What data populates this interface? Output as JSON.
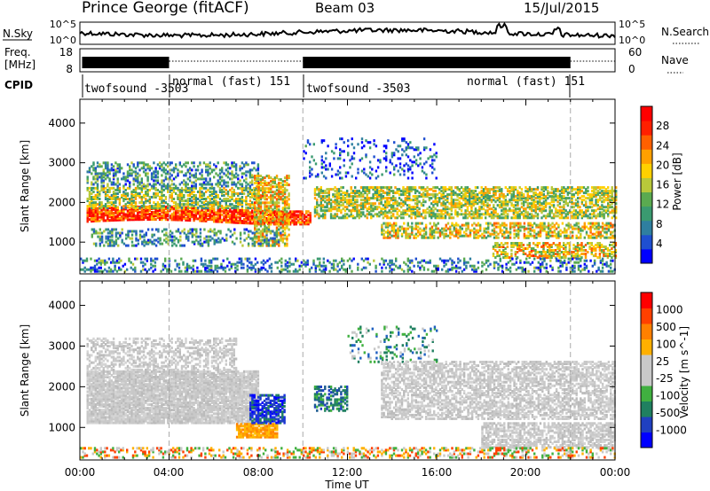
{
  "header": {
    "station": "Prince George (fitACF)",
    "beam": "Beam 03",
    "date": "15/Jul/2015"
  },
  "noise_panel": {
    "left_label": "N.Sky",
    "left_ticks": [
      "10^5",
      "10^0"
    ],
    "right_label": "N.Search",
    "right_ticks": [
      "10^5",
      "10^0"
    ]
  },
  "freq_panel": {
    "left_label_line1": "Freq.",
    "left_label_line2": "[MHz]",
    "left_ticks": [
      "18",
      "8"
    ],
    "right_label": "Nave",
    "right_ticks": [
      "60",
      "0"
    ]
  },
  "cpid_panel": {
    "label": "CPID",
    "segments": [
      {
        "text": "twofsound -3503"
      },
      {
        "text": "normal (fast) 151"
      },
      {
        "text": "twofsound -3503"
      },
      {
        "text": "normal (fast) 151"
      }
    ]
  },
  "time_axis": {
    "label": "Time UT",
    "ticks": [
      "00:00",
      "04:00",
      "08:00",
      "12:00",
      "16:00",
      "20:00",
      "00:00"
    ]
  },
  "chart_data": [
    {
      "type": "heatmap",
      "name": "power",
      "ylabel": "Slant Range [km]",
      "yticks": [
        1000,
        2000,
        3000,
        4000
      ],
      "ylim": [
        200,
        4600
      ],
      "xlim_hours": [
        0,
        24
      ],
      "colorbar_label": "Power [dB]",
      "colorbar_ticks": [
        "28",
        "24",
        "20",
        "16",
        "12",
        "8",
        "4"
      ],
      "colorbar_colors": [
        "#0000ff",
        "#1f4fd0",
        "#2f7fa0",
        "#3a9a70",
        "#5aaa50",
        "#b8c83a",
        "#ffd000",
        "#ffa000",
        "#ff6000",
        "#ff2000",
        "#ff0000"
      ],
      "bands": [
        {
          "t0": 0.3,
          "t1": 10.3,
          "r0": 1500,
          "r1": 1850,
          "level": 0.85,
          "d": 0.85
        },
        {
          "t0": 0.3,
          "t1": 8.0,
          "r0": 1850,
          "r1": 2350,
          "level": 0.45,
          "d": 0.6
        },
        {
          "t0": 0.3,
          "t1": 8.0,
          "r0": 2400,
          "r1": 3000,
          "level": 0.3,
          "d": 0.4
        },
        {
          "t0": 7.8,
          "t1": 9.4,
          "r0": 900,
          "r1": 2700,
          "level": 0.6,
          "d": 0.55
        },
        {
          "t0": 0.5,
          "t1": 9.0,
          "r0": 900,
          "r1": 1350,
          "level": 0.3,
          "d": 0.35
        },
        {
          "t0": 10.5,
          "t1": 24.0,
          "r0": 1600,
          "r1": 2400,
          "level": 0.5,
          "d": 0.6
        },
        {
          "t0": 13.5,
          "t1": 24.0,
          "r0": 1100,
          "r1": 1500,
          "level": 0.55,
          "d": 0.55
        },
        {
          "t0": 18.5,
          "t1": 24.0,
          "r0": 600,
          "r1": 1000,
          "level": 0.6,
          "d": 0.55
        },
        {
          "t0": 10.0,
          "t1": 16.0,
          "r0": 2600,
          "r1": 3600,
          "level": 0.15,
          "d": 0.15
        },
        {
          "t0": 0.0,
          "t1": 24.0,
          "r0": 250,
          "r1": 600,
          "level": 0.25,
          "d": 0.3
        }
      ]
    },
    {
      "type": "heatmap",
      "name": "velocity",
      "ylabel": "Slant Range [km]",
      "yticks": [
        1000,
        2000,
        3000,
        4000
      ],
      "ylim": [
        200,
        4600
      ],
      "xlim_hours": [
        0,
        24
      ],
      "colorbar_label": "Velocity [m s^-1]",
      "colorbar_ticks": [
        "1000",
        "500",
        "100",
        "25",
        "-25",
        "-100",
        "-500",
        "-1000"
      ],
      "colorbar_colors": [
        "#0000ff",
        "#2040c0",
        "#208060",
        "#40b040",
        "#c8c8c8",
        "#c8c8c8",
        "#ffb000",
        "#ff8000",
        "#ff4000",
        "#ff0000"
      ],
      "bands": [
        {
          "t0": 0.3,
          "t1": 8.0,
          "r0": 1100,
          "r1": 2400,
          "cls": "gray",
          "d": 0.9
        },
        {
          "t0": 0.3,
          "t1": 7.0,
          "r0": 2400,
          "r1": 3200,
          "cls": "gray",
          "d": 0.45
        },
        {
          "t0": 7.0,
          "t1": 8.8,
          "r0": 750,
          "r1": 1100,
          "cls": "orange",
          "d": 0.9
        },
        {
          "t0": 7.6,
          "t1": 9.2,
          "r0": 1100,
          "r1": 1800,
          "cls": "blue",
          "d": 0.7
        },
        {
          "t0": 10.5,
          "t1": 12.0,
          "r0": 1400,
          "r1": 2000,
          "cls": "bluegreen",
          "d": 0.5
        },
        {
          "t0": 12.0,
          "t1": 16.0,
          "r0": 2600,
          "r1": 3500,
          "cls": "green",
          "d": 0.15
        },
        {
          "t0": 13.5,
          "t1": 24.0,
          "r0": 1200,
          "r1": 2600,
          "cls": "gray",
          "d": 0.6
        },
        {
          "t0": 18.0,
          "t1": 24.0,
          "r0": 500,
          "r1": 1100,
          "cls": "gray",
          "d": 0.65
        },
        {
          "t0": 0.0,
          "t1": 24.0,
          "r0": 250,
          "r1": 500,
          "cls": "mixed",
          "d": 0.35
        }
      ]
    }
  ]
}
